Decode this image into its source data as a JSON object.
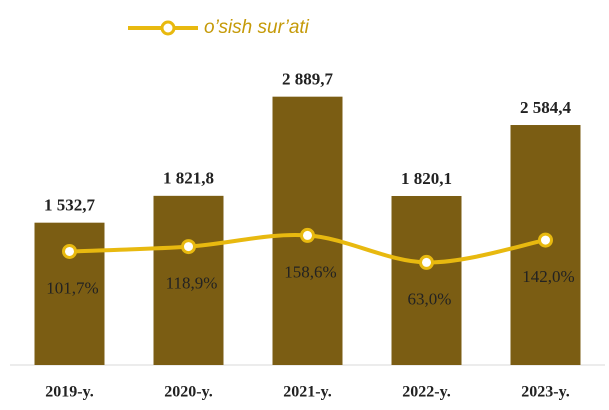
{
  "chart_data": {
    "type": "bar",
    "categories": [
      "2019-y.",
      "2020-y.",
      "2021-y.",
      "2022-y.",
      "2023-y."
    ],
    "series": [
      {
        "type": "bar",
        "color": "#7b5d13",
        "values": [
          1532.7,
          1821.8,
          2889.7,
          1820.1,
          2584.4
        ],
        "value_labels": [
          "1 532,7",
          "1 821,8",
          "2 889,7",
          "1 820,1",
          "2 584,4"
        ]
      },
      {
        "type": "line",
        "name": "o’sish sur’ati",
        "color": "#e8b90f",
        "axis": "y2",
        "values": [
          101.7,
          118.9,
          158.6,
          63.0,
          142.0
        ],
        "value_labels": [
          "101,7%",
          "118,9%",
          "158,6%",
          "63,0%",
          "142,0%"
        ]
      }
    ],
    "ylim": [
      0,
      3500
    ],
    "y2lim": [
      -300,
      850
    ],
    "legend": "top"
  }
}
